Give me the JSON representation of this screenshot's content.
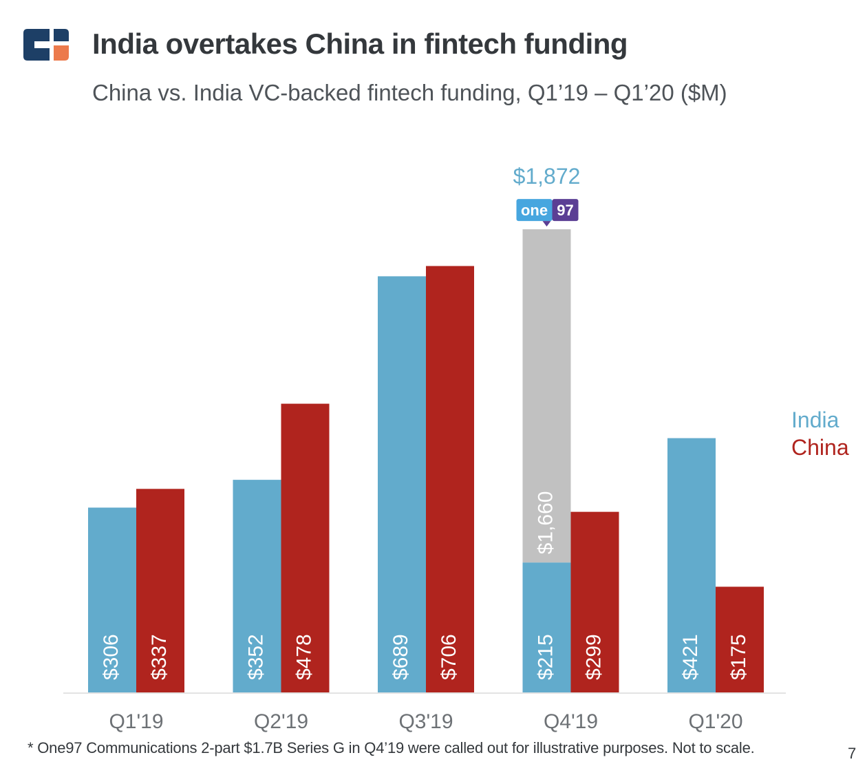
{
  "header": {
    "title": "India overtakes China in fintech funding",
    "subtitle": "China vs. India VC-backed fintech funding, Q1’19 – Q1’20 ($M)"
  },
  "colors": {
    "india": "#62abcc",
    "china": "#b0241e",
    "callout_gray": "#c1c1c1",
    "logo_navy": "#1d3f66",
    "logo_orange": "#ec7a4c",
    "badge_blue": "#47a6df",
    "badge_purple": "#5b3e94"
  },
  "chart_data": {
    "type": "bar",
    "categories": [
      "Q1'19",
      "Q2'19",
      "Q3'19",
      "Q4'19",
      "Q1'20"
    ],
    "series": [
      {
        "name": "India",
        "values": [
          306,
          352,
          689,
          215,
          421
        ],
        "labels": [
          "$306",
          "$352",
          "$689",
          "$215",
          "$421"
        ]
      },
      {
        "name": "China",
        "values": [
          337,
          478,
          706,
          299,
          175
        ],
        "labels": [
          "$337",
          "$478",
          "$706",
          "$299",
          "$175"
        ]
      }
    ],
    "callout": {
      "category": "Q4'19",
      "series": "India",
      "segment_value": 1660,
      "segment_label": "$1,660",
      "total_label": "$1,872",
      "badge_text_left": "one",
      "badge_text_right": "97"
    },
    "legend": [
      "India",
      "China"
    ],
    "legend_position": "right",
    "grid": false,
    "ylim": [
      0,
      800
    ],
    "xlabel": "",
    "ylabel": ""
  },
  "footnote": "* One97 Communications 2-part $1.7B Series G in Q4’19 were called out for illustrative purposes. Not to scale.",
  "page_number": "7"
}
